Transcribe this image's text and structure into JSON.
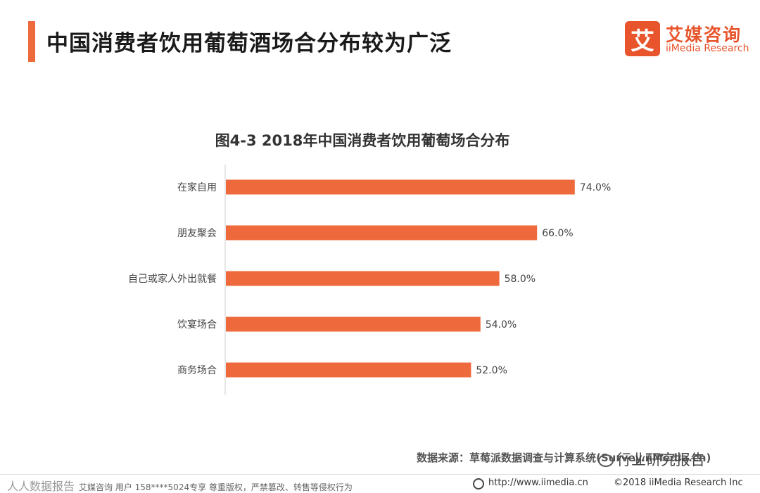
{
  "header": {
    "title": "中国消费者饮用葡萄酒场合分布较为广泛",
    "logo_mark": "艾",
    "logo_cn": "艾媒咨询",
    "logo_en": "iiMedia Research"
  },
  "chart_data": {
    "type": "bar",
    "orientation": "horizontal",
    "title": "图4-3 2018年中国消费者饮用葡萄场合分布",
    "categories": [
      "在家自用",
      "朋友聚会",
      "自己或家人外出就餐",
      "饮宴场合",
      "商务场合"
    ],
    "values": [
      74.0,
      66.0,
      58.0,
      54.0,
      52.0
    ],
    "value_labels": [
      "74.0%",
      "66.0%",
      "58.0%",
      "54.0%",
      "52.0%"
    ],
    "unit": "%",
    "xlim": [
      0,
      100
    ],
    "grid": false,
    "bar_color": "#ee6a3c"
  },
  "source": "数据来源：草莓派数据调查与计算系统(Survey.iiMedia.cn)",
  "watermark": "行业研究报告",
  "footer": {
    "left_watermark": "人人数据报告",
    "left": "艾媒咨询 用户 158****5024专享 尊重版权，严禁篡改、转售等侵权行为",
    "url": "http://www.iimedia.cn",
    "copyright": "©2018  iiMedia Research  Inc"
  }
}
